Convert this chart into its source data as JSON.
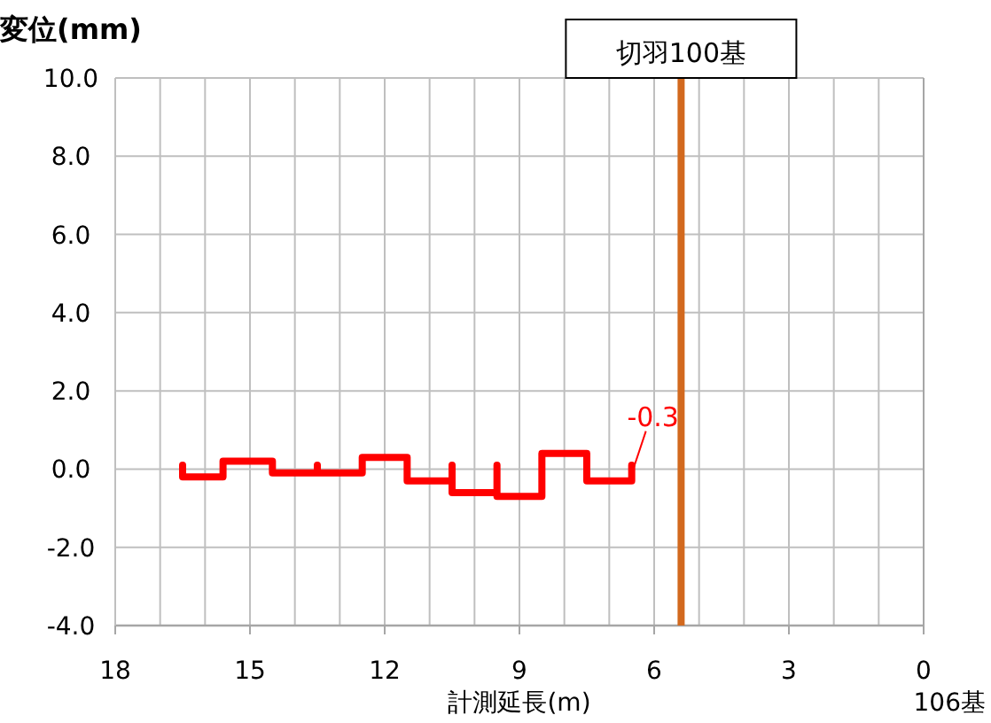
{
  "chart_data": {
    "type": "line",
    "ylabel": "変位(mm)",
    "xlabel": "計測延長(m)",
    "xlim": [
      18,
      0
    ],
    "ylim": [
      -4,
      10
    ],
    "xticks": [
      18,
      {
        "value": 17,
        "label": null
      },
      {
        "value": 16,
        "label": null
      },
      15,
      {
        "value": 14,
        "label": null
      },
      {
        "value": 13,
        "label": null
      },
      12,
      {
        "value": 11,
        "label": null
      },
      {
        "value": 10,
        "label": null
      },
      9,
      {
        "value": 8,
        "label": null
      },
      {
        "value": 7,
        "label": null
      },
      6,
      {
        "value": 5,
        "label": null
      },
      {
        "value": 4,
        "label": null
      },
      3,
      {
        "value": 2,
        "label": null
      },
      {
        "value": 1,
        "label": null
      },
      0
    ],
    "yticks": [
      {
        "value": -4,
        "label": "-4.0"
      },
      {
        "value": -2,
        "label": "-2.0"
      },
      {
        "value": 0,
        "label": "0.0"
      },
      {
        "value": 2,
        "label": "2.0"
      },
      {
        "value": 4,
        "label": "4.0"
      },
      {
        "value": 6,
        "label": "6.0"
      },
      {
        "value": 8,
        "label": "8.0"
      },
      {
        "value": 10,
        "label": "10.0"
      }
    ],
    "grid": true,
    "marker": "none",
    "line_style": "solid",
    "series": [
      {
        "color": "#ff0000",
        "x": [
          16.5,
          16.5,
          15.6,
          15.6,
          14.5,
          14.5,
          13.5,
          13.5,
          13.5,
          12.5,
          12.5,
          11.5,
          11.5,
          10.5,
          10.5,
          10.5,
          9.5,
          9.5,
          9.5,
          8.5,
          8.5,
          7.5,
          7.5,
          6.5,
          6.5
        ],
        "values": [
          0.1,
          -0.2,
          -0.2,
          0.2,
          0.2,
          -0.1,
          -0.1,
          0.1,
          -0.1,
          -0.1,
          0.3,
          0.3,
          -0.3,
          -0.3,
          0.1,
          -0.6,
          -0.6,
          0.1,
          -0.7,
          -0.7,
          0.4,
          0.4,
          -0.3,
          -0.3,
          0.1
        ]
      }
    ],
    "ref_lines": [
      {
        "axis": "x",
        "value": 5.4,
        "label": "切羽100基",
        "color": "#d2691e"
      }
    ],
    "annotations": [
      {
        "text": "-0.3",
        "x": 6.5,
        "y": -0.3
      },
      "106基"
    ]
  }
}
